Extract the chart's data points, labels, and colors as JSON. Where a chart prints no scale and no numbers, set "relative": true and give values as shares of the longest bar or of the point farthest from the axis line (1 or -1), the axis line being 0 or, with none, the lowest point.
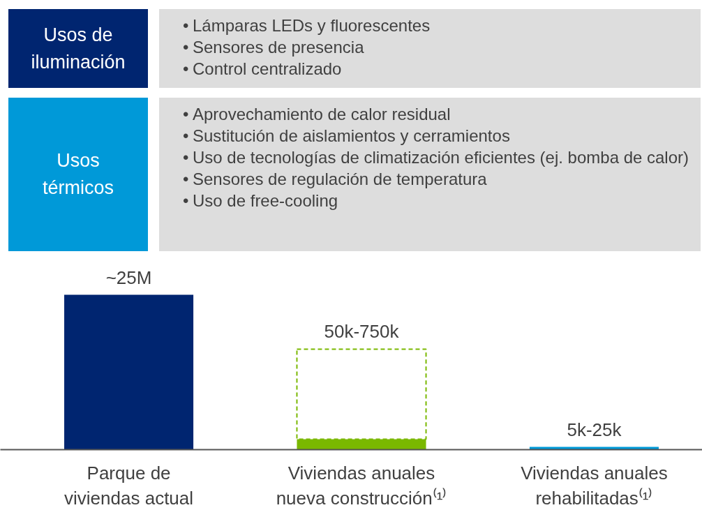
{
  "chart_data": {
    "type": "bar",
    "relative": true,
    "stacked": true,
    "categories": [
      "Parque de\nviviendas actual",
      "Viviendas anuales\nnueva construcción⁽¹⁾",
      "Viviendas anuales\nrehabilitadas⁽¹⁾"
    ],
    "series": [
      {
        "colors": [
          "#002570",
          "#7ab800",
          "#0099d8"
        ],
        "values": [
          1,
          0.068,
          0.018
        ]
      },
      {
        "color": "#7ab800",
        "line_style": "dashed",
        "values": [
          null,
          0.581,
          null
        ]
      }
    ],
    "value_labels": [
      "~25M",
      "50k-750k",
      "5k-25k"
    ],
    "grid": false,
    "annotations": [
      "Usos de\niluminación",
      "• Lámparas LEDs y fluorescentes\n• Sensores de presencia\n• Control centralizado",
      "Usos\ntérmicos",
      "• Aprovechamiento de calor residual\n• Sustitución de aislamientos y cerramientos\n• Uso de tecnologías de climatización eficientes (ej. bomba de calor)\n• Sensores de regulación de temperatura\n• Uso de free-cooling"
    ]
  }
}
